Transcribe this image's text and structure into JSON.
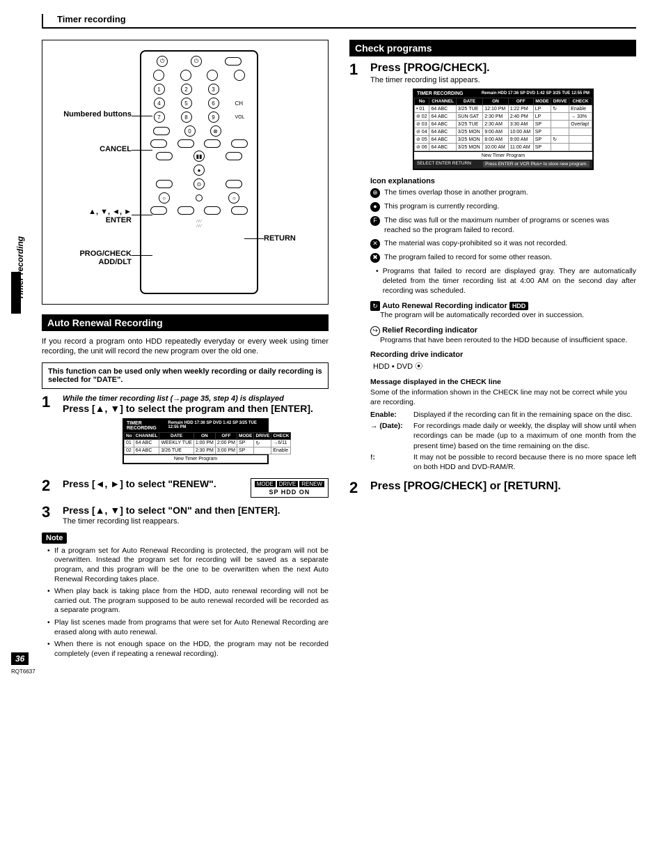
{
  "page": {
    "header": "Timer recording",
    "side_tab": "Timer recording",
    "page_num": "36",
    "doc_code": "RQT6637"
  },
  "remote": {
    "labels": {
      "numbered": "Numbered buttons",
      "cancel": "CANCEL",
      "arrows": "▲, ▼, ◄, ►\nENTER",
      "return": "RETURN",
      "prog": "PROG/CHECK\nADD/DLT"
    }
  },
  "auto_renewal": {
    "bar": "Auto Renewal Recording",
    "intro": "If you record a program onto HDD repeatedly everyday or every week using timer recording, the unit will record the new program over the old one.",
    "boxed": "This function can be used only when weekly recording or daily recording is selected for \"DATE\".",
    "step1_lead": "While the timer recording list (→page 35, step 4) is displayed",
    "step1_title": "Press [▲, ▼] to select the program and then [ENTER].",
    "step2_title": "Press [◄, ►] to select \"RENEW\".",
    "step3_title": "Press [▲, ▼] to select \"ON\" and then [ENTER].",
    "step3_sub": "The timer recording list reappears.",
    "note_badge": "Note",
    "notes": [
      "If a program set for Auto Renewal Recording is protected, the program will not be overwritten. Instead the program set for recording will be saved as a separate program, and this program will be the one to be overwritten when the next Auto Renewal Recording takes place.",
      "When play back is taking place from the HDD, auto renewal recording will not be carried out. The program supposed to be auto renewal recorded will be recorded as a separate program.",
      "Play list scenes made from programs that were set for Auto Renewal Recording are erased along with auto renewal.",
      "When there is not enough space on the HDD, the program may not be recorded completely (even if repeating a renewal recording)."
    ],
    "mini_lcd": {
      "title_left": "TIMER RECORDING",
      "title_right": "Remain HDD 17:36 SP DVD 1:42 SP  3/25 TUE 12:55 PM",
      "headers": [
        "No",
        "CHANNEL",
        "DATE",
        "ON",
        "OFF",
        "MODE",
        "DRIVE",
        "CHECK"
      ],
      "rows": [
        [
          "01",
          "64 ABC",
          "WEEKLY TUE",
          "1:00 PM",
          "2:00 PM",
          "SP",
          "↻",
          "→6/11"
        ],
        [
          "02",
          "64 ABC",
          "3/26 TUE",
          "2:30 PM",
          "3:00 PM",
          "SP",
          "",
          "Enable"
        ]
      ],
      "footer": "New Timer Program"
    },
    "renew_box": {
      "r1a": "MODE",
      "r1b": "DRIVE",
      "r1c": "RENEW",
      "r2": "SP  HDD   ON"
    }
  },
  "check_programs": {
    "bar": "Check programs",
    "step1_title": "Press [PROG/CHECK].",
    "step1_sub": "The timer recording list appears.",
    "lcd": {
      "title_left": "TIMER RECORDING",
      "title_right": "Remain HDD 17:36 SP DVD 1:42 SP  3/25 TUE 12:55 PM",
      "headers": [
        "No",
        "CHANNEL",
        "DATE",
        "ON",
        "OFF",
        "MODE",
        "DRIVE",
        "CHECK"
      ],
      "rows": [
        [
          "• 01",
          "64 ABC",
          "3/25 TUE",
          "12:10 PM",
          "1:22 PM",
          "LP",
          "↻",
          "Enable"
        ],
        [
          "⊘ 02",
          "64 ABC",
          "SUN-SAT",
          "2:30 PM",
          "2:40 PM",
          "LP",
          "",
          "→ 33%"
        ],
        [
          "⊘ 03",
          "64 ABC",
          "3/25 TUE",
          "2:30 AM",
          "3:30 AM",
          "SP",
          "",
          "Overlap!"
        ],
        [
          "⊘ 04",
          "64 ABC",
          "3/25 MON",
          "9:00 AM",
          "10:00 AM",
          "SP",
          "",
          ""
        ],
        [
          "⊘ 05",
          "64 ABC",
          "3/25 MON",
          "8:00 AM",
          "9:00 AM",
          "SP",
          "↻",
          ""
        ],
        [
          "⊘ 06",
          "64 ABC",
          "3/25 MON",
          "10:00 AM",
          "11:00 AM",
          "SP",
          "",
          ""
        ]
      ],
      "footer": "New Timer Program",
      "hint_left": "SELECT  ENTER  RETURN",
      "hint_right": "Press ENTER or VCR Plus+ to store new program."
    },
    "icon_title": "Icon explanations",
    "icons": [
      {
        "sym": "⊕",
        "text": "The times overlap those in another program."
      },
      {
        "sym": "●",
        "text": "This program is currently recording."
      },
      {
        "sym": "F",
        "text": "The disc was full or the maximum number of programs or scenes was reached so the program failed to record."
      },
      {
        "sym": "✕",
        "text": "The material was copy-prohibited so it was not recorded."
      },
      {
        "sym": "✖",
        "text": "The program failed to record for some other reason."
      }
    ],
    "gray_note": "Programs that failed to record are displayed gray. They are automatically deleted from the timer recording list at 4:00 AM on the second day after recording was scheduled.",
    "auto_renew_ind": {
      "icon": "↻",
      "title": "Auto Renewal Recording indicator",
      "badge": "HDD",
      "body": "The program will be automatically recorded over in succession."
    },
    "relief_ind": {
      "icon": "↪",
      "title": "Relief Recording indicator",
      "body": "Programs that have been rerouted to the HDD because of insufficient space."
    },
    "drive_ind": {
      "title": "Recording drive indicator",
      "body": "HDD ▪  DVD ⦿"
    },
    "msg": {
      "hdr": "Message displayed in the CHECK line",
      "intro": "Some of the information shown in the CHECK line may not be correct while you are recording.",
      "items": [
        {
          "k": "Enable:",
          "v": "Displayed if the recording can fit in the remaining space on the disc."
        },
        {
          "k": "→ (Date):",
          "v": "For recordings made daily or weekly, the display will show until when recordings can be made (up to a maximum of one month from the present time) based on the time remaining on the disc."
        },
        {
          "k": "!:",
          "v": "It may not be possible to record because there is no more space left on both HDD and DVD-RAM/R."
        }
      ]
    },
    "step2_title": "Press [PROG/CHECK] or [RETURN]."
  }
}
